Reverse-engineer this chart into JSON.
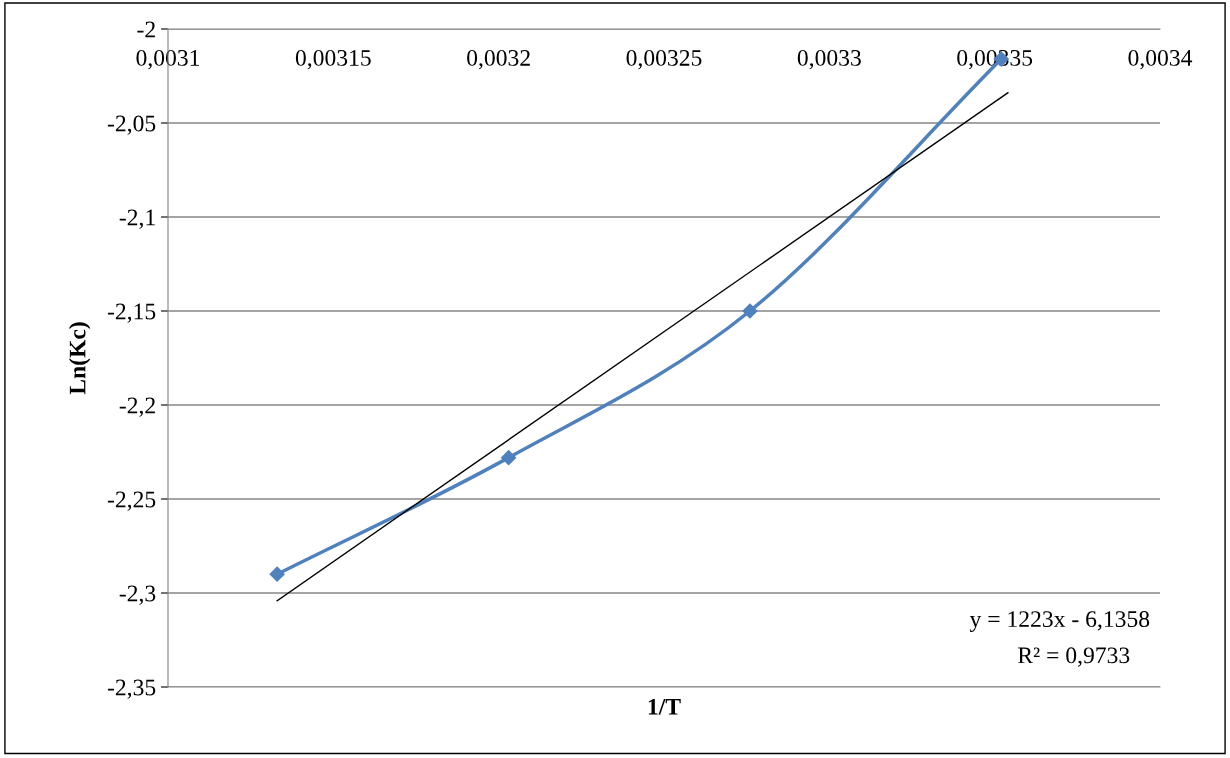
{
  "chart_data": {
    "type": "line",
    "xlabel": "1/T",
    "ylabel": "Ln(Kc)",
    "series": [
      {
        "color": "#4f81bd",
        "x": [
          0.003133,
          0.003203,
          0.003276,
          0.003352
        ],
        "values": [
          -2.29,
          -2.228,
          -2.15,
          -2.016
        ],
        "marker": "diamond"
      },
      {
        "type": "line",
        "color": "#000000",
        "x": [
          0.003133,
          0.003354
        ],
        "values": [
          -2.3041,
          -2.0339
        ],
        "marker": "none"
      }
    ],
    "xlim": [
      0.0031,
      0.0034
    ],
    "xticks": [
      {
        "value": 0.0031,
        "label": "0,0031"
      },
      {
        "value": 0.00315,
        "label": "0,00315"
      },
      {
        "value": 0.0032,
        "label": "0,0032"
      },
      {
        "value": 0.00325,
        "label": "0,00325"
      },
      {
        "value": 0.0033,
        "label": "0,0033"
      },
      {
        "value": 0.00335,
        "label": "0,00335"
      },
      {
        "value": 0.0034,
        "label": "0,0034"
      }
    ],
    "ylim": [
      -2.35,
      -2.0
    ],
    "yticks": [
      {
        "value": -2.35,
        "label": "-2,35"
      },
      {
        "value": -2.3,
        "label": "-2,3"
      },
      {
        "value": -2.25,
        "label": "-2,25"
      },
      {
        "value": -2.2,
        "label": "-2,2"
      },
      {
        "value": -2.15,
        "label": "-2,15"
      },
      {
        "value": -2.1,
        "label": "-2,1"
      },
      {
        "value": -2.05,
        "label": "-2,05"
      },
      {
        "value": -2.0,
        "label": "-2"
      }
    ],
    "grid": "y",
    "legend": false,
    "annotations": [
      "y = 1223x - 6,1358",
      "R² = 0,9733"
    ]
  }
}
